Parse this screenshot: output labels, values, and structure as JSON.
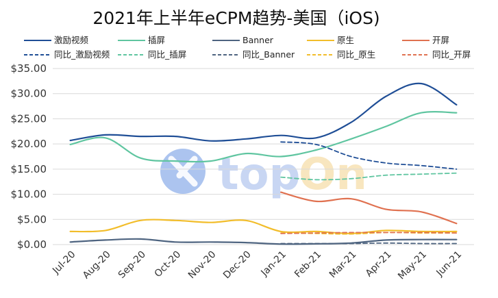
{
  "chart_data": {
    "type": "line",
    "title": "2021年上半年eCPM趋势-美国（iOS)",
    "categories": [
      "Jul-20",
      "Aug-20",
      "Sep-20",
      "Oct-20",
      "Nov-20",
      "Dec-20",
      "Jan-21",
      "Feb-21",
      "Mar-21",
      "Apr-21",
      "May-21",
      "Jun-21"
    ],
    "ylim": [
      0,
      35
    ],
    "yticks": [
      "$0.00",
      "$5.00",
      "$10.00",
      "$15.00",
      "$20.00",
      "$25.00",
      "$30.00",
      "$35.00"
    ],
    "grid": true,
    "legend_position": "top",
    "series": [
      {
        "name": "激励视频",
        "color": "#1f4e96",
        "dashed": false,
        "values": [
          20.7,
          21.8,
          21.5,
          21.5,
          20.6,
          21.0,
          21.7,
          21.2,
          24.3,
          29.5,
          32.0,
          27.8
        ]
      },
      {
        "name": "插屏",
        "color": "#5fc5a0",
        "dashed": false,
        "values": [
          19.9,
          21.2,
          17.2,
          16.6,
          16.6,
          18.1,
          17.5,
          18.8,
          21.0,
          23.5,
          26.2,
          26.2
        ]
      },
      {
        "name": "Banner",
        "color": "#4e6480",
        "dashed": false,
        "values": [
          0.5,
          0.9,
          1.1,
          0.5,
          0.5,
          0.4,
          0.1,
          0.15,
          0.3,
          0.9,
          1.0,
          1.0
        ]
      },
      {
        "name": "原生",
        "color": "#f2bd2a",
        "dashed": false,
        "values": [
          2.6,
          2.8,
          4.8,
          4.8,
          4.4,
          4.8,
          2.6,
          2.6,
          2.2,
          2.8,
          2.6,
          2.6
        ]
      },
      {
        "name": "开屏",
        "color": "#e07150",
        "dashed": false,
        "values": [
          null,
          null,
          null,
          null,
          null,
          null,
          10.4,
          8.6,
          9.1,
          7.0,
          6.5,
          4.2
        ]
      },
      {
        "name": "同比_激励视频",
        "color": "#1f4e96",
        "dashed": true,
        "values": [
          null,
          null,
          null,
          null,
          null,
          null,
          20.4,
          19.9,
          17.5,
          16.2,
          15.7,
          15.0
        ]
      },
      {
        "name": "同比_插屏",
        "color": "#5fc5a0",
        "dashed": true,
        "values": [
          null,
          null,
          null,
          null,
          null,
          null,
          13.4,
          12.9,
          13.1,
          13.8,
          14.0,
          14.2
        ]
      },
      {
        "name": "同比_Banner",
        "color": "#4e6480",
        "dashed": true,
        "values": [
          null,
          null,
          null,
          null,
          null,
          null,
          0.2,
          0.2,
          0.2,
          0.3,
          0.2,
          0.2
        ]
      },
      {
        "name": "同比_原生",
        "color": "#f2bd2a",
        "dashed": true,
        "values": [
          null,
          null,
          null,
          null,
          null,
          null,
          2.3,
          2.2,
          2.1,
          2.4,
          2.3,
          2.3
        ]
      },
      {
        "name": "同比_开屏",
        "color": "#e07150",
        "dashed": true,
        "values": [
          null,
          null,
          null,
          null,
          null,
          null,
          2.2,
          2.3,
          2.4,
          2.4,
          2.4,
          2.3
        ]
      }
    ]
  },
  "watermark": {
    "text_top": "top",
    "text_on": "On",
    "top_color": "#b6c9ef",
    "on_color": "#f6deaa",
    "logo_color": "#7fa4e6"
  }
}
